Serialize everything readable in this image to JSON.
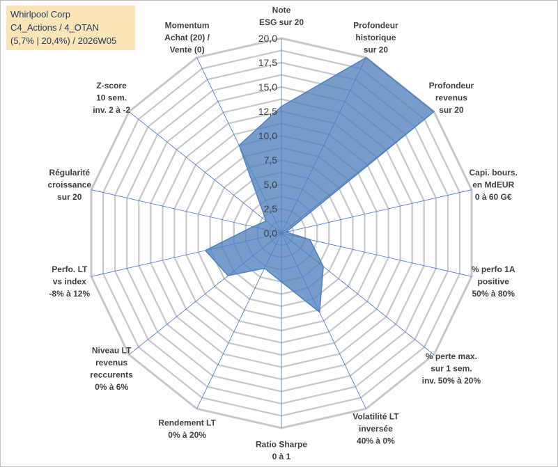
{
  "header": {
    "lines": [
      "Whirlpool Corp",
      "C4_Actions / 4_OTAN",
      "(5,7% | 20,4%) / 2026W05"
    ]
  },
  "colors": {
    "fill": "#4f81bd",
    "stroke": "#4f81bd",
    "grid": "#c8c8c8",
    "spoke": "#4472c4",
    "header_bg": "#fbe5b6",
    "header_text": "#1f3864"
  },
  "chart_data": {
    "type": "radar",
    "rlim": [
      0,
      20
    ],
    "ticks": [
      "0,0",
      "2,5",
      "5,0",
      "7,5",
      "10,0",
      "12,5",
      "15,0",
      "17,5",
      "20,0"
    ],
    "tick_values": [
      0,
      2.5,
      5,
      7.5,
      10,
      12.5,
      15,
      17.5,
      20
    ],
    "grid": true,
    "axes": [
      {
        "lines": [
          "Note",
          "ESG sur 20"
        ],
        "value": 13.0
      },
      {
        "lines": [
          "Profondeur",
          "historique",
          "sur 20"
        ],
        "value": 20.0
      },
      {
        "lines": [
          "Profondeur",
          "revenus",
          "sur 20"
        ],
        "value": 20.0
      },
      {
        "lines": [
          "Capi. bours.",
          "en MdEUR",
          "0 à 60 G€"
        ],
        "value": 0.5
      },
      {
        "lines": [
          "% perfo 1A",
          "positive",
          "50% à 80%"
        ],
        "value": 3.0
      },
      {
        "lines": [
          "% perte max.",
          "sur 1 sem.",
          "inv. 50% à 20%"
        ],
        "value": 5.5
      },
      {
        "lines": [
          "Volatilité LT",
          "inversée",
          "40% à 0%"
        ],
        "value": 9.0
      },
      {
        "lines": [
          "Ratio Sharpe",
          "0 à 1"
        ],
        "value": 5.0
      },
      {
        "lines": [
          "Rendement LT",
          "0% à 20%"
        ],
        "value": 4.0
      },
      {
        "lines": [
          "Niveau LT",
          "revenus",
          "reccurents",
          "0% à 6%"
        ],
        "value": 7.0
      },
      {
        "lines": [
          "Perfo. LT",
          "vs index",
          "-8% à 12%"
        ],
        "value": 8.0
      },
      {
        "lines": [
          "Régularité",
          "croissance",
          "sur 20"
        ],
        "value": 3.0
      },
      {
        "lines": [
          "Z-score",
          "10 sem.",
          "inv. 2 à -2"
        ],
        "value": 2.0
      },
      {
        "lines": [
          "Momentum",
          "Achat (20) /",
          "Vente (0)"
        ],
        "value": 10.0
      }
    ]
  }
}
